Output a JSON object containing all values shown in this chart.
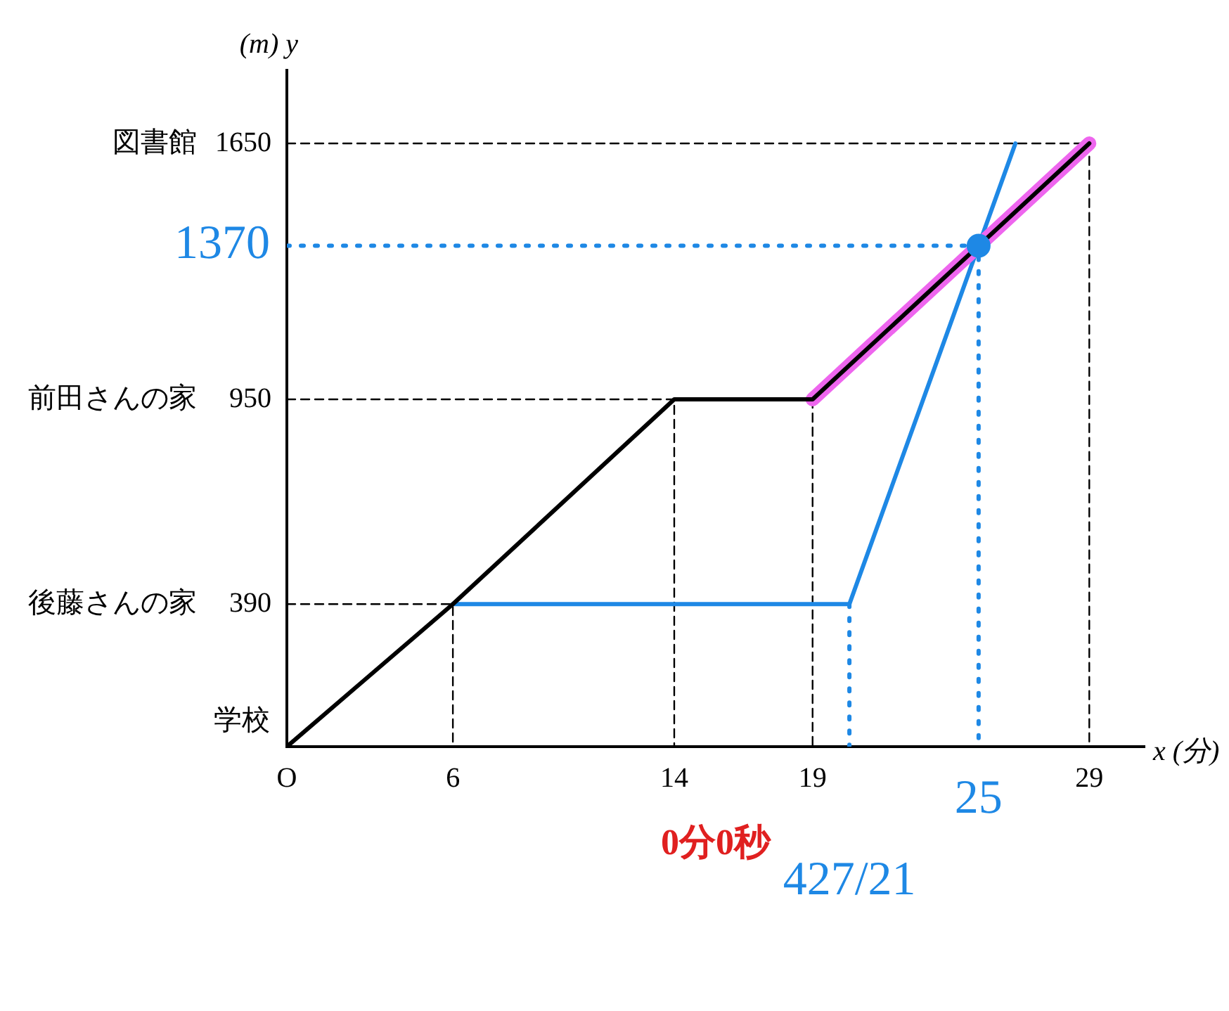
{
  "chart_data": {
    "type": "line",
    "xlabel": "x (分)",
    "ylabel": "(m) y",
    "xlim": [
      0,
      31
    ],
    "ylim": [
      0,
      1850
    ],
    "xticks": [
      {
        "value": 0,
        "label": "O"
      },
      6,
      14,
      19,
      29
    ],
    "yticks": [
      390,
      950,
      1650
    ],
    "grid": false,
    "legend": false,
    "marker": "none",
    "series": [
      {
        "type": "line",
        "color": "#000000",
        "line_style": "solid",
        "x": [
          0,
          6,
          14,
          19,
          29
        ],
        "values": [
          0,
          390,
          950,
          950,
          1650
        ]
      },
      {
        "type": "line",
        "color": "#ee66ee",
        "line_style": "solid",
        "x": [
          19,
          29
        ],
        "values": [
          950,
          1650
        ]
      },
      {
        "type": "line",
        "color": "#1e88e5",
        "line_style": "solid",
        "x": [
          6,
          20.33,
          25,
          26.33
        ],
        "values": [
          390,
          390,
          1370,
          1650
        ]
      },
      {
        "type": "scatter",
        "color": "#1e88e5",
        "marker": "circle",
        "x": [
          25
        ],
        "values": [
          1370
        ]
      },
      {
        "type": "line",
        "color": "#000000",
        "line_style": "dashed",
        "x": [
          0,
          29,
          29
        ],
        "values": [
          1650,
          1650,
          0
        ]
      },
      {
        "type": "line",
        "color": "#000000",
        "line_style": "dashed",
        "x": [
          0,
          14,
          14
        ],
        "values": [
          950,
          950,
          0
        ]
      },
      {
        "type": "line",
        "color": "#000000",
        "line_style": "dashed",
        "x": [
          19,
          19
        ],
        "values": [
          950,
          0
        ]
      },
      {
        "type": "line",
        "color": "#000000",
        "line_style": "dashed",
        "x": [
          0,
          6,
          6
        ],
        "values": [
          390,
          390,
          0
        ]
      },
      {
        "type": "line",
        "color": "#1e88e5",
        "line_style": "dotted",
        "x": [
          0,
          25,
          25
        ],
        "values": [
          1370,
          1370,
          0
        ]
      },
      {
        "type": "line",
        "color": "#1e88e5",
        "line_style": "dotted",
        "x": [
          20.33,
          20.33
        ],
        "values": [
          390,
          0
        ]
      }
    ],
    "annotations": [
      "図書館",
      "前田さんの家",
      "後藤さんの家",
      "学校",
      {
        "text": "1370",
        "x": 0,
        "y": 1370
      },
      {
        "text": "25",
        "x": 25,
        "y": 0
      },
      {
        "text": "427/21",
        "x": 20.33,
        "y": 0
      },
      "0分0秒"
    ]
  }
}
